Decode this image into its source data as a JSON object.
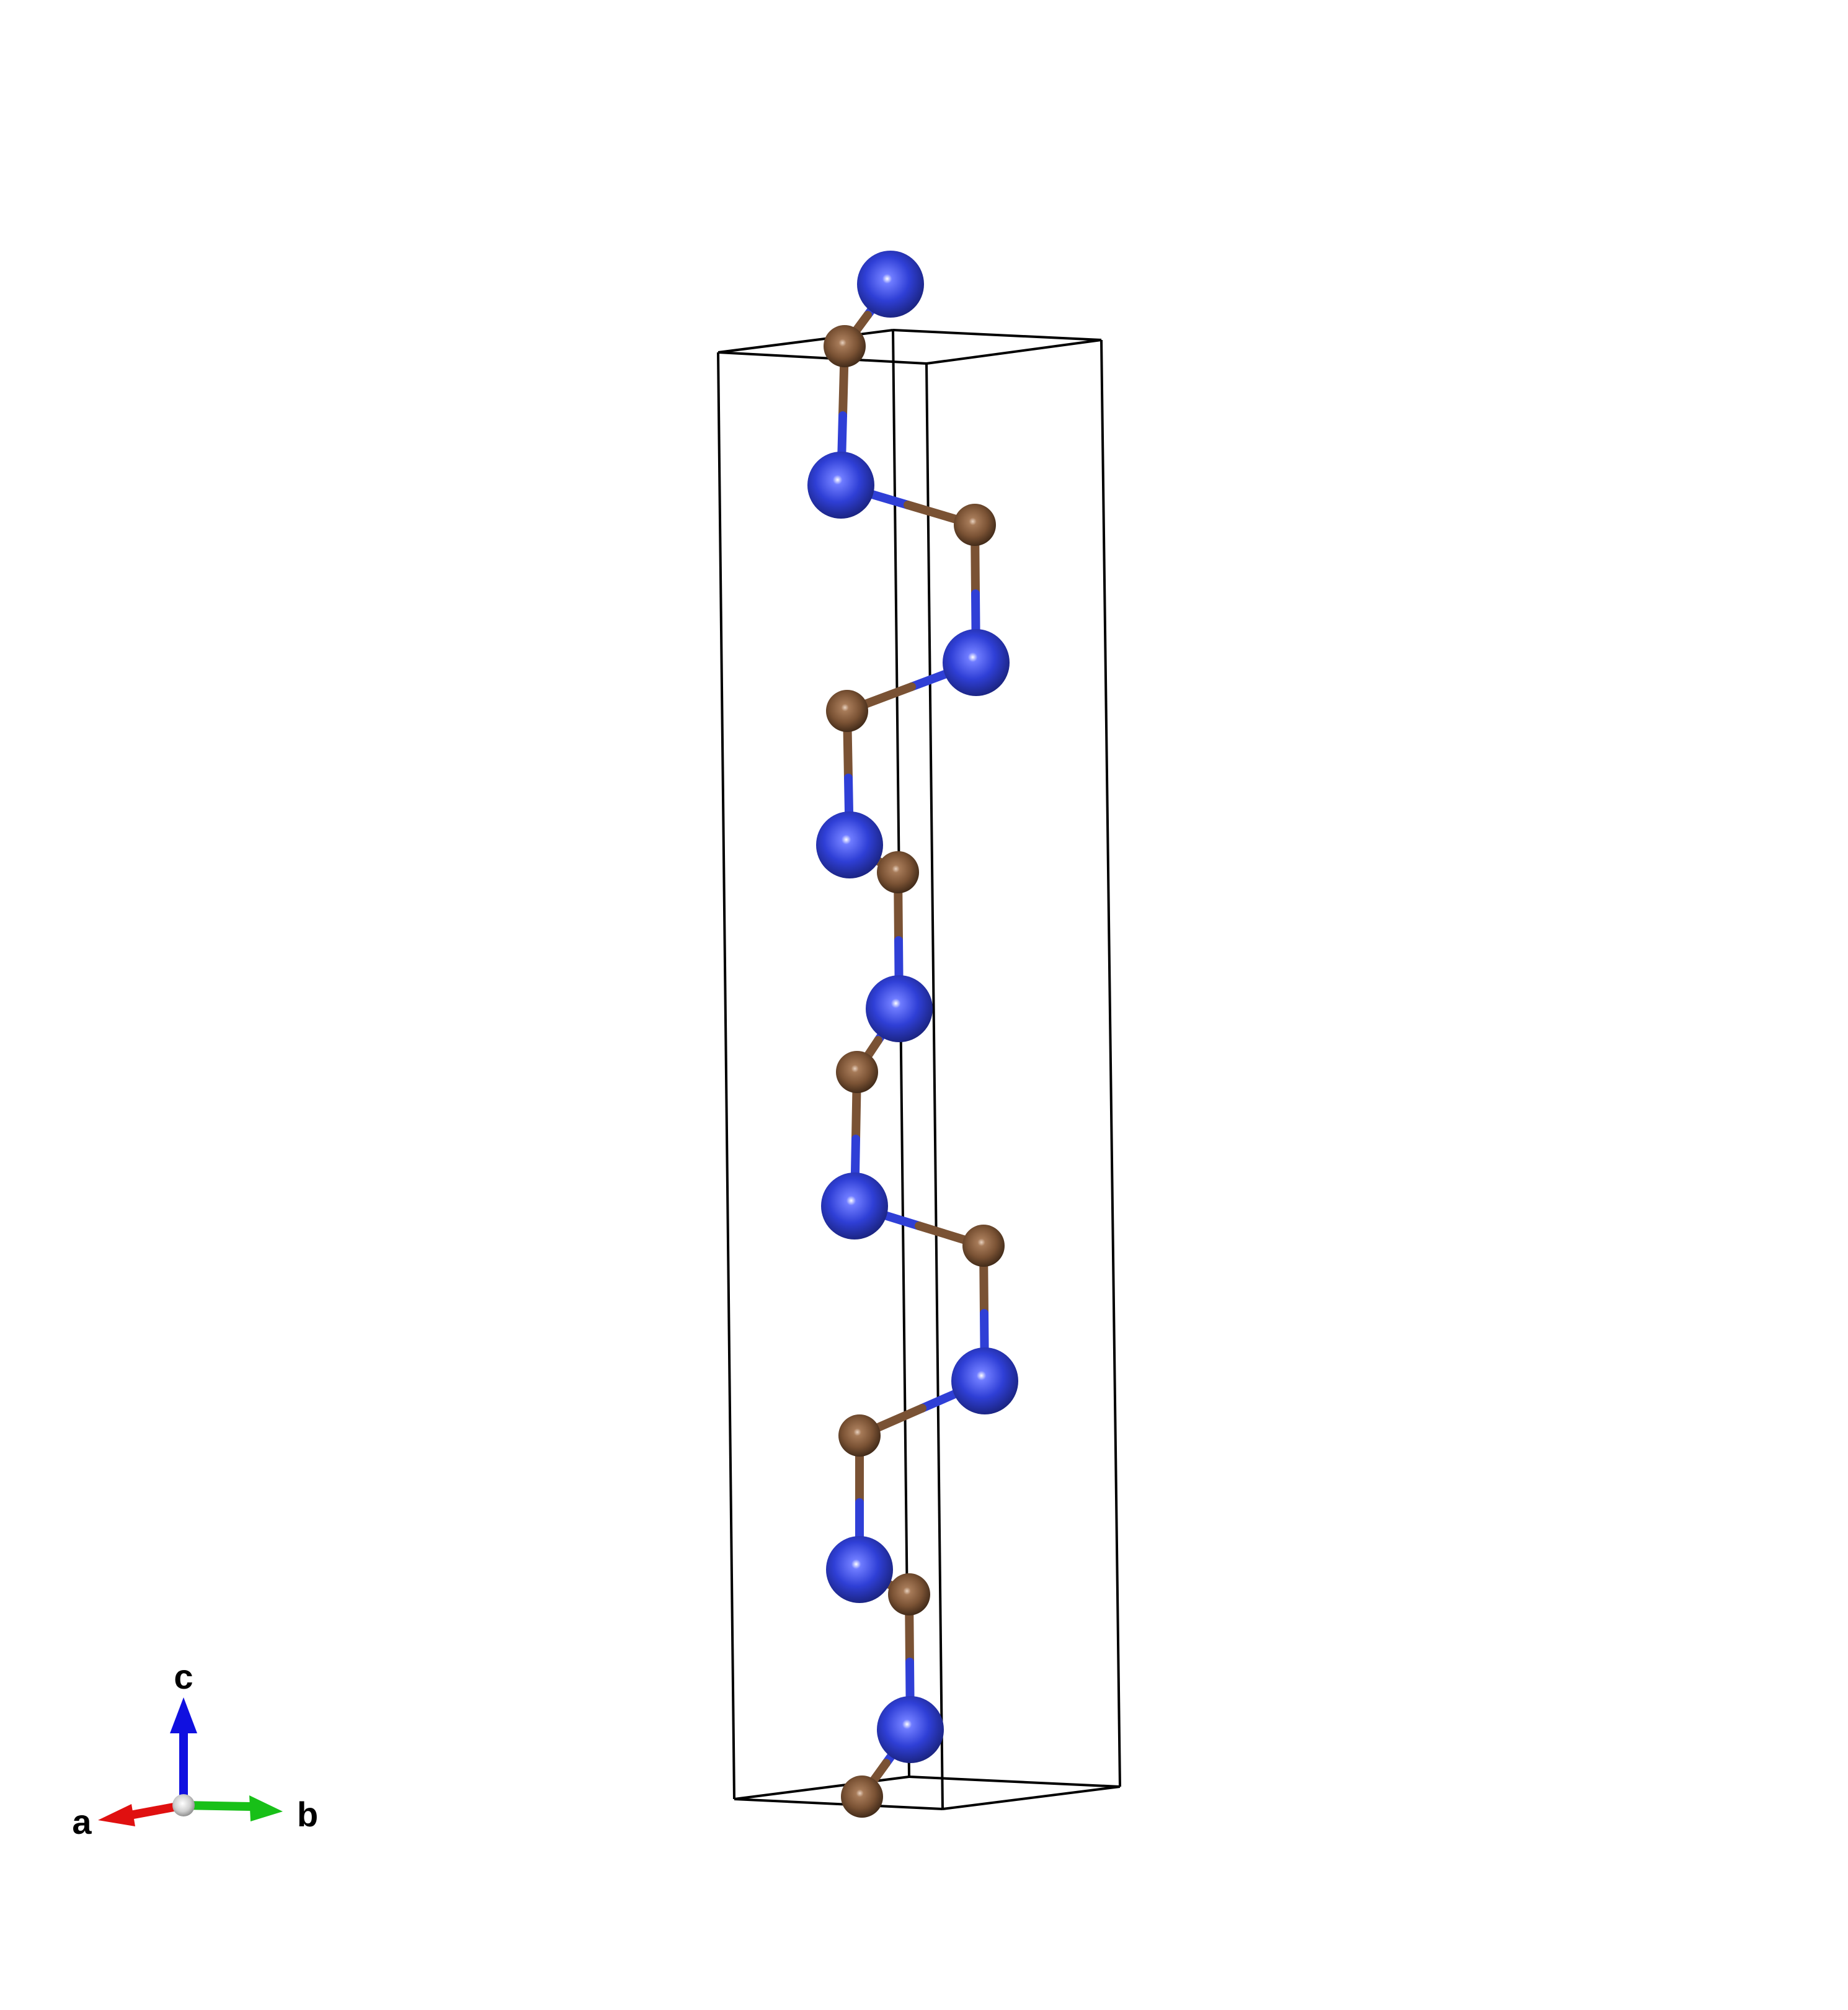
{
  "colors": {
    "background": "#ffffff",
    "cell_edge": "#000000",
    "atom_blue": "#2f3fd6",
    "atom_brown": "#7a5234",
    "axis_a": "#e01010",
    "axis_b": "#18c018",
    "axis_c": "#1010e0",
    "axis_origin": "#cfcfcf"
  },
  "axes": {
    "a_label": "a",
    "b_label": "b",
    "c_label": "c"
  },
  "atoms": [
    {
      "element": "blue"
    },
    {
      "element": "brown"
    },
    {
      "element": "blue"
    },
    {
      "element": "brown"
    },
    {
      "element": "blue"
    },
    {
      "element": "brown"
    },
    {
      "element": "blue"
    },
    {
      "element": "brown"
    },
    {
      "element": "blue"
    },
    {
      "element": "brown"
    },
    {
      "element": "blue"
    },
    {
      "element": "brown"
    },
    {
      "element": "blue"
    },
    {
      "element": "brown"
    },
    {
      "element": "blue"
    },
    {
      "element": "brown"
    },
    {
      "element": "blue"
    },
    {
      "element": "brown"
    }
  ]
}
